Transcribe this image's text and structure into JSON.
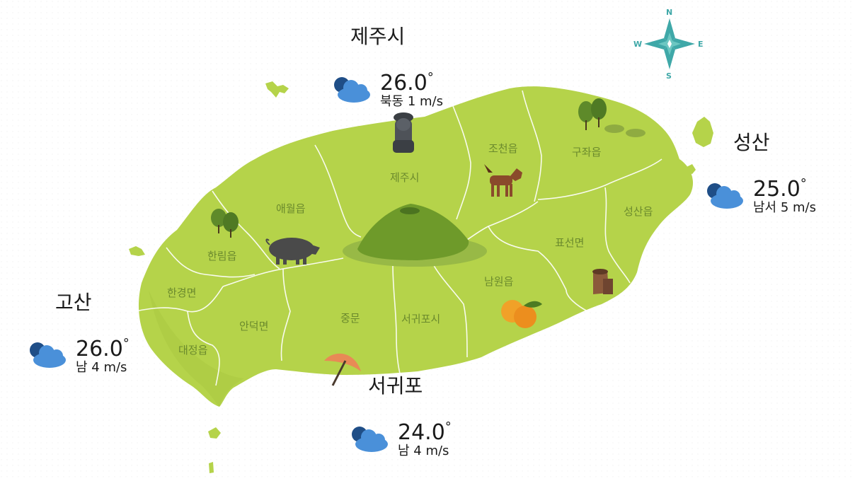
{
  "map": {
    "regions": [
      {
        "id": "aewol",
        "label": "애월읍"
      },
      {
        "id": "jeju",
        "label": "제주시"
      },
      {
        "id": "jocheon",
        "label": "조천읍"
      },
      {
        "id": "gujwa",
        "label": "구좌읍"
      },
      {
        "id": "hallim",
        "label": "한림읍"
      },
      {
        "id": "seongsan",
        "label": "성산읍"
      },
      {
        "id": "pyoseon",
        "label": "표선면"
      },
      {
        "id": "hangyeong",
        "label": "한경면"
      },
      {
        "id": "namwon",
        "label": "남원읍"
      },
      {
        "id": "andeok",
        "label": "안덕면"
      },
      {
        "id": "jungmun",
        "label": "중문"
      },
      {
        "id": "seogwipo",
        "label": "서귀포시"
      },
      {
        "id": "daejeong",
        "label": "대정읍"
      }
    ],
    "colors": {
      "land": "#b5d34a",
      "land_shadow": "#a3c23c",
      "mountain": "#6e9a2a",
      "mountain_base": "#98b946",
      "cloud_front": "#4a90d9",
      "cloud_back": "#1f4e87",
      "compass": "#3fa8a8"
    }
  },
  "compass": {
    "n": "N",
    "s": "S",
    "e": "E",
    "w": "W"
  },
  "stations": [
    {
      "id": "jeju",
      "name": "제주시",
      "temp": "26.0",
      "deg": "°",
      "wind": "북동 1 m/s",
      "icon": "cloud-icon"
    },
    {
      "id": "seongsan",
      "name": "성산",
      "temp": "25.0",
      "deg": "°",
      "wind": "남서 5 m/s",
      "icon": "cloud-icon"
    },
    {
      "id": "gosan",
      "name": "고산",
      "temp": "26.0",
      "deg": "°",
      "wind": "남 4 m/s",
      "icon": "cloud-icon"
    },
    {
      "id": "seogwipo",
      "name": "서귀포",
      "temp": "24.0",
      "deg": "°",
      "wind": "남 4 m/s",
      "icon": "cloud-icon"
    }
  ]
}
